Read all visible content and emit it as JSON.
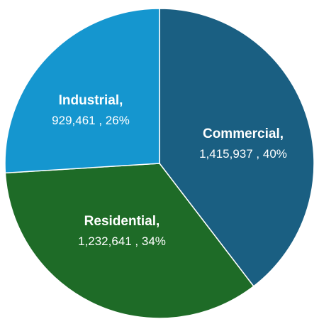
{
  "chart_data": {
    "type": "pie",
    "title": "",
    "slices": [
      {
        "label": "Commercial",
        "value": 1415937,
        "value_text": "1,415,937",
        "percent_text": "40%",
        "color": "#1a5f82"
      },
      {
        "label": "Residential",
        "value": 1232641,
        "value_text": "1,232,641",
        "percent_text": "34%",
        "color": "#1e6b27"
      },
      {
        "label": "Industrial",
        "value": 929461,
        "value_text": "929,461",
        "percent_text": "26%",
        "color": "#1596cf"
      }
    ],
    "start_angle_deg": 0,
    "direction": "clockwise"
  }
}
